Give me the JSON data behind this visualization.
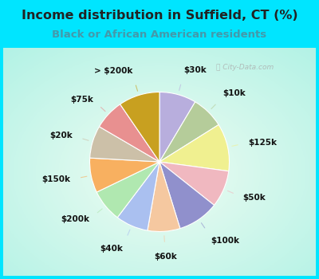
{
  "title": "Income distribution in Suffield, CT (%)",
  "subtitle": "Black or African American residents",
  "title_color": "#222222",
  "subtitle_color": "#4499aa",
  "title_fontsize": 11.5,
  "subtitle_fontsize": 9.5,
  "outer_bg": "#00e5ff",
  "chart_bg_center": "#f0faf5",
  "chart_bg_edge": "#00e5ff",
  "segments": [
    {
      "label": "$30k",
      "value": 8.5,
      "color": "#b8aedd"
    },
    {
      "label": "$10k",
      "value": 7.5,
      "color": "#b5cc9a"
    },
    {
      "label": "$125k",
      "value": 11.0,
      "color": "#f0f090"
    },
    {
      "label": "$50k",
      "value": 8.5,
      "color": "#f0b8c0"
    },
    {
      "label": "$100k",
      "value": 9.5,
      "color": "#9090cc"
    },
    {
      "label": "$60k",
      "value": 7.5,
      "color": "#f5c8a0"
    },
    {
      "label": "$40k",
      "value": 7.5,
      "color": "#aac0f0"
    },
    {
      "label": "$200k",
      "value": 7.5,
      "color": "#b0e8b0"
    },
    {
      "label": "$150k",
      "value": 8.0,
      "color": "#f8b060"
    },
    {
      "label": "$20k",
      "value": 7.5,
      "color": "#ccc0a8"
    },
    {
      "label": "$75k",
      "value": 7.0,
      "color": "#e89090"
    },
    {
      "label": "> $200k",
      "value": 9.5,
      "color": "#c8a020"
    }
  ],
  "label_fontsize": 7.5,
  "label_color": "#111111",
  "line_color_alpha": 0.6,
  "wedge_edge_color": "white",
  "wedge_linewidth": 0.8
}
